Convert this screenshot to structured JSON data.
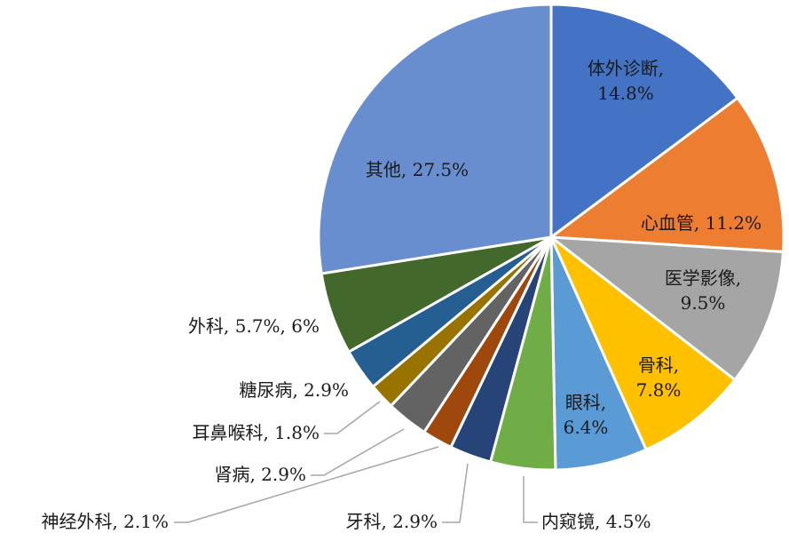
{
  "chart_data": {
    "type": "pie",
    "slices": [
      {
        "label": "体外诊断",
        "display": "体外诊断,\n14.8%",
        "value": 14.8,
        "color": "#4472C4"
      },
      {
        "label": "心血管",
        "display": "心血管, 11.2%",
        "value": 11.2,
        "color": "#ED7D31"
      },
      {
        "label": "医学影像",
        "display": "医学影像,\n9.5%",
        "value": 9.5,
        "color": "#A5A5A5"
      },
      {
        "label": "骨科",
        "display": "骨科,\n7.8%",
        "value": 7.8,
        "color": "#FFC000"
      },
      {
        "label": "眼科",
        "display": "眼科,\n6.4%",
        "value": 6.4,
        "color": "#5B9BD5"
      },
      {
        "label": "内窥镜",
        "display": "内窥镜, 4.5%",
        "value": 4.5,
        "color": "#70AD47"
      },
      {
        "label": "牙科",
        "display": "牙科, 2.9%",
        "value": 2.9,
        "color": "#264478"
      },
      {
        "label": "神经外科",
        "display": "神经外科, 2.1%",
        "value": 2.1,
        "color": "#9E480E"
      },
      {
        "label": "肾病",
        "display": "肾病, 2.9%",
        "value": 2.9,
        "color": "#636363"
      },
      {
        "label": "耳鼻喉科",
        "display": "耳鼻喉科, 1.8%",
        "value": 1.8,
        "color": "#997300"
      },
      {
        "label": "糖尿病",
        "display": "糖尿病, 2.9%",
        "value": 2.9,
        "color": "#255E91"
      },
      {
        "label": "外科",
        "display": "外科, 5.7%, 6%",
        "value": 5.7,
        "color": "#43682B"
      },
      {
        "label": "其他",
        "display": "其他, 27.5%",
        "value": 27.5,
        "color": "#698ED0"
      }
    ]
  }
}
